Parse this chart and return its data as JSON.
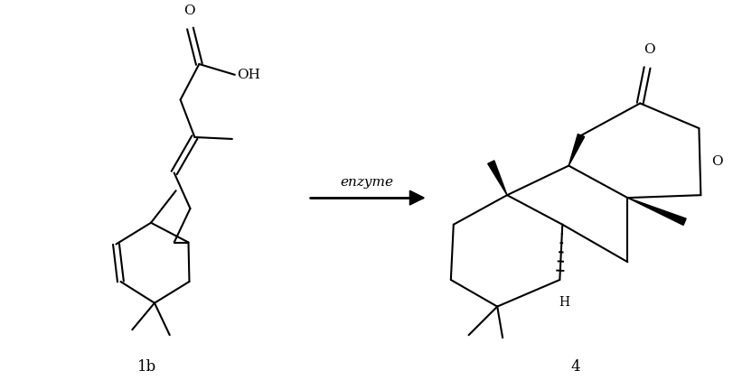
{
  "bg_color": "#ffffff",
  "line_color": "#000000",
  "lw": 1.5,
  "lw_arrow": 2.0,
  "figsize": [
    8.12,
    4.21
  ],
  "dpi": 100,
  "label_1b": "1b",
  "label_4": "4",
  "label_enzyme": "enzyme",
  "label_OH": "OH",
  "label_O": "O",
  "label_H": "H"
}
